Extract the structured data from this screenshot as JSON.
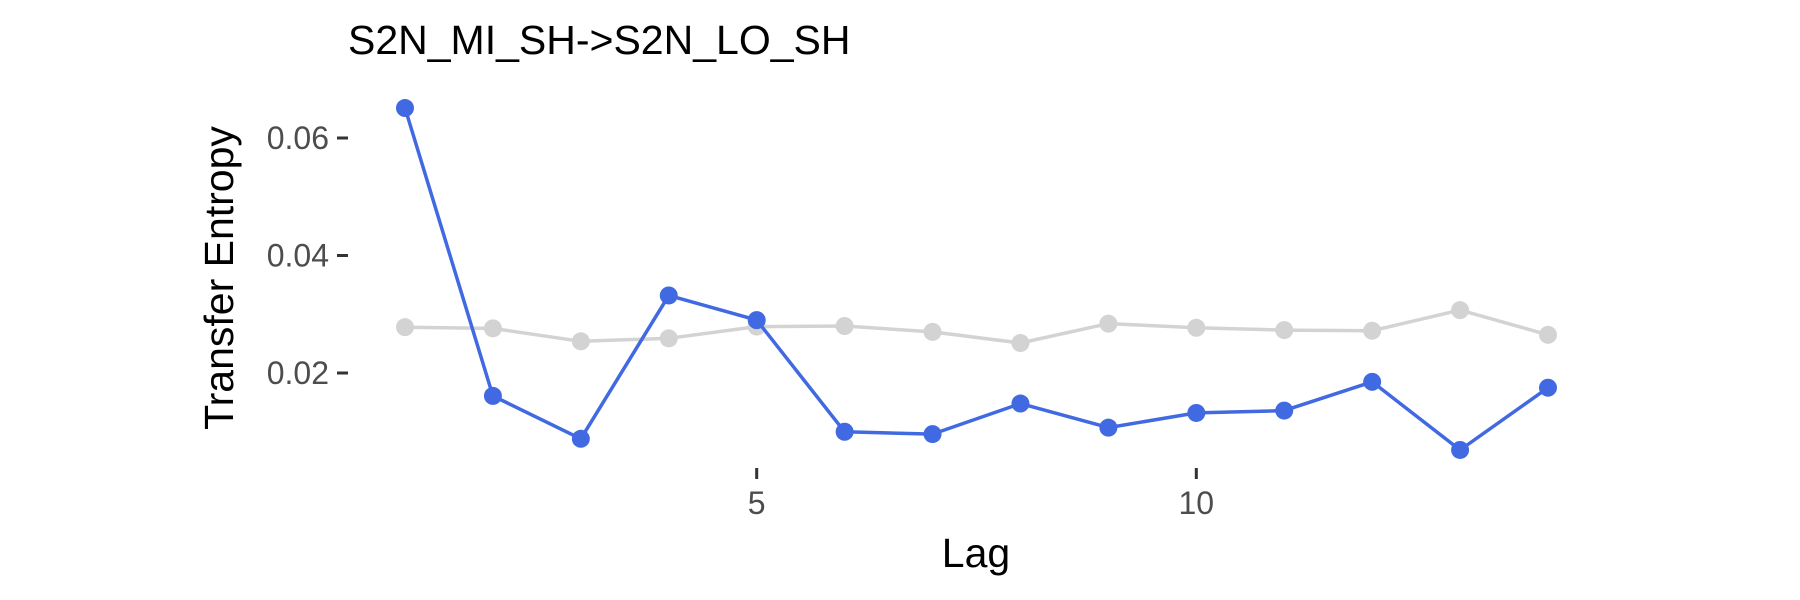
{
  "chart_data": {
    "type": "line",
    "title": "S2N_MI_SH->S2N_LO_SH",
    "xlabel": "Lag",
    "ylabel": "Transfer Entropy",
    "x": [
      1,
      2,
      3,
      4,
      5,
      6,
      7,
      8,
      9,
      10,
      11,
      12,
      13,
      14
    ],
    "xlim": [
      0.6,
      14.4
    ],
    "ylim": [
      0.0,
      0.068
    ],
    "xticks": [
      5,
      10
    ],
    "xtick_labels": [
      "5",
      "10"
    ],
    "yticks": [
      0.02,
      0.04,
      0.06
    ],
    "ytick_labels": [
      "0.02",
      "0.04",
      "0.06"
    ],
    "grid": false,
    "legend": "none",
    "series": [
      {
        "color": "#d3d3d3",
        "values": [
          0.0278,
          0.0276,
          0.0254,
          0.0259,
          0.0279,
          0.028,
          0.027,
          0.0251,
          0.0284,
          0.0277,
          0.0273,
          0.0272,
          0.0307,
          0.0265
        ]
      },
      {
        "color": "#4169e1",
        "values": [
          0.0651,
          0.0161,
          0.0088,
          0.0332,
          0.029,
          0.01,
          0.0096,
          0.0148,
          0.0107,
          0.0132,
          0.0136,
          0.0185,
          0.0069,
          0.0175
        ]
      }
    ]
  }
}
